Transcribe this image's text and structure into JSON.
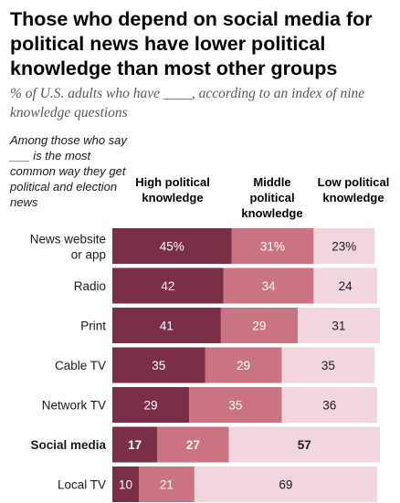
{
  "title": "Those who depend on social media for political news have lower political knowledge than most other groups",
  "subtitle": "% of U.S. adults who have ____, according to an index of nine knowledge questions",
  "intro": "Among those who say ___ is the most common way they get political and election news",
  "column_headers": [
    "High political knowledge",
    "Middle political knowledge",
    "Low political knowledge"
  ],
  "colors": {
    "high": "#7b2f47",
    "middle": "#c97383",
    "low": "#f1d7dd",
    "text_dark": "#1a1a1a",
    "text_light": "#ffffff"
  },
  "chart_data": {
    "type": "bar",
    "orientation": "horizontal",
    "stacked": true,
    "categories": [
      "News website or app",
      "Radio",
      "Print",
      "Cable TV",
      "Network TV",
      "Social media",
      "Local TV"
    ],
    "category_lines": [
      [
        "News website",
        "or app"
      ],
      [
        "Radio"
      ],
      [
        "Print"
      ],
      [
        "Cable TV"
      ],
      [
        "Network TV"
      ],
      [
        "Social media"
      ],
      [
        "Local TV"
      ]
    ],
    "highlight_category": "Social media",
    "series": [
      {
        "name": "High political knowledge",
        "values": [
          45,
          42,
          41,
          35,
          29,
          17,
          10
        ]
      },
      {
        "name": "Middle political knowledge",
        "values": [
          31,
          34,
          29,
          29,
          35,
          27,
          21
        ]
      },
      {
        "name": "Low political knowledge",
        "values": [
          23,
          24,
          31,
          35,
          36,
          57,
          69
        ]
      }
    ],
    "value_labels": [
      [
        "45%",
        "31%",
        "23%"
      ],
      [
        "42",
        "34",
        "24"
      ],
      [
        "41",
        "29",
        "31"
      ],
      [
        "35",
        "29",
        "35"
      ],
      [
        "29",
        "35",
        "36"
      ],
      [
        "17",
        "27",
        "57"
      ],
      [
        "10",
        "21",
        "69"
      ]
    ],
    "xlim": [
      0,
      100
    ],
    "title": "Those who depend on social media for political news have lower political knowledge than most other groups"
  }
}
